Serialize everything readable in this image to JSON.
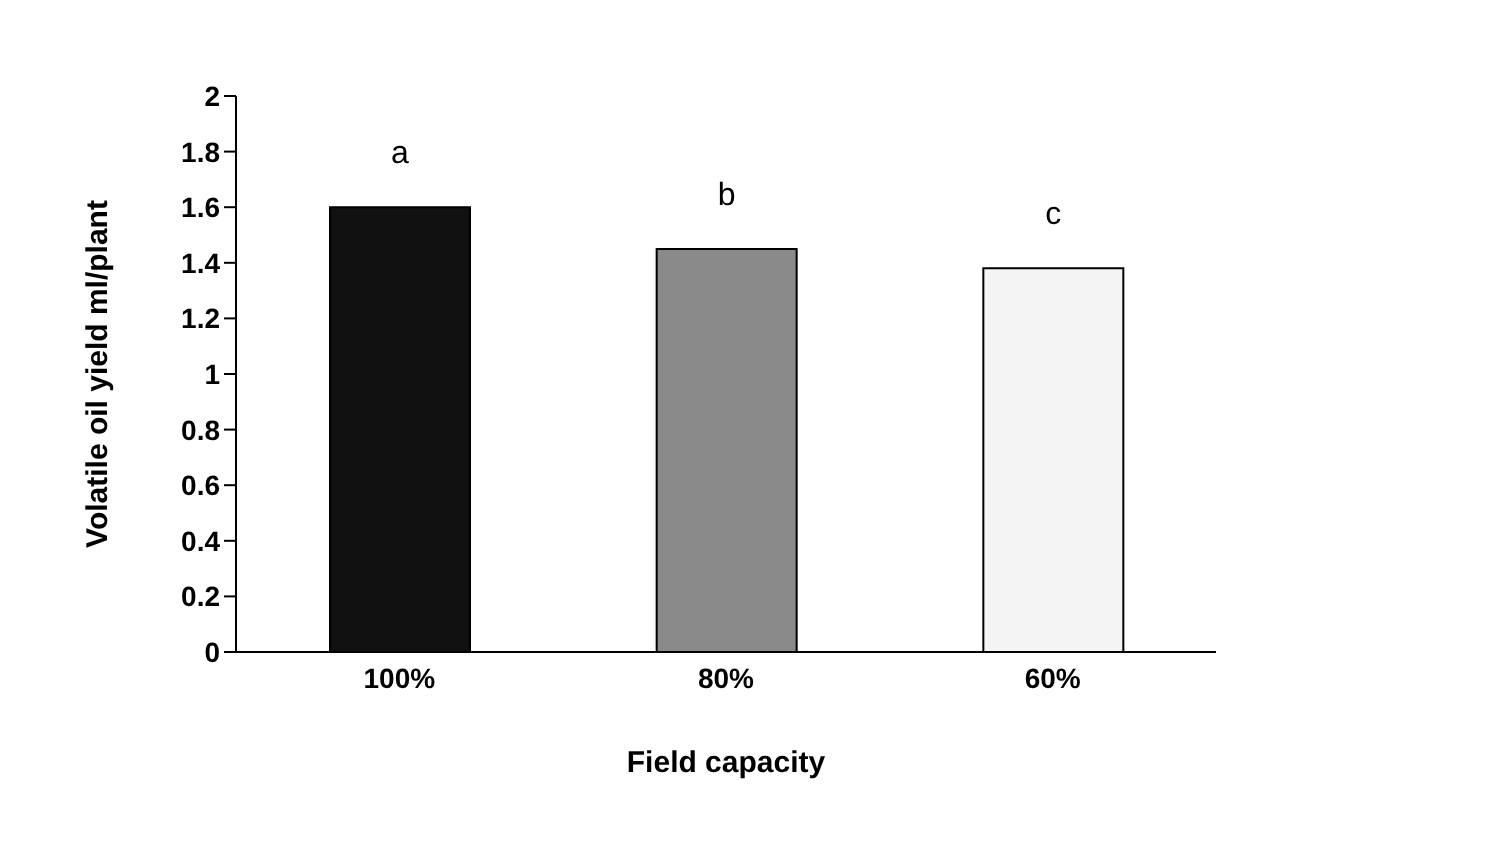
{
  "chart_data": {
    "type": "bar",
    "xlabel": "Field capacity",
    "ylabel": "Volatile oil yield ml/plant",
    "categories": [
      "100%",
      "80%",
      "60%"
    ],
    "values": [
      1.6,
      1.45,
      1.38
    ],
    "colors": [
      "#111111",
      "#8a8a8a",
      "#f4f4f4"
    ],
    "ylim": [
      0,
      2
    ],
    "yticks": [
      0,
      0.2,
      0.4,
      0.6,
      0.8,
      1,
      1.2,
      1.4,
      1.6,
      1.8,
      2
    ],
    "annotations": [
      "a",
      "b",
      "c"
    ],
    "grid": false,
    "legend": false
  }
}
